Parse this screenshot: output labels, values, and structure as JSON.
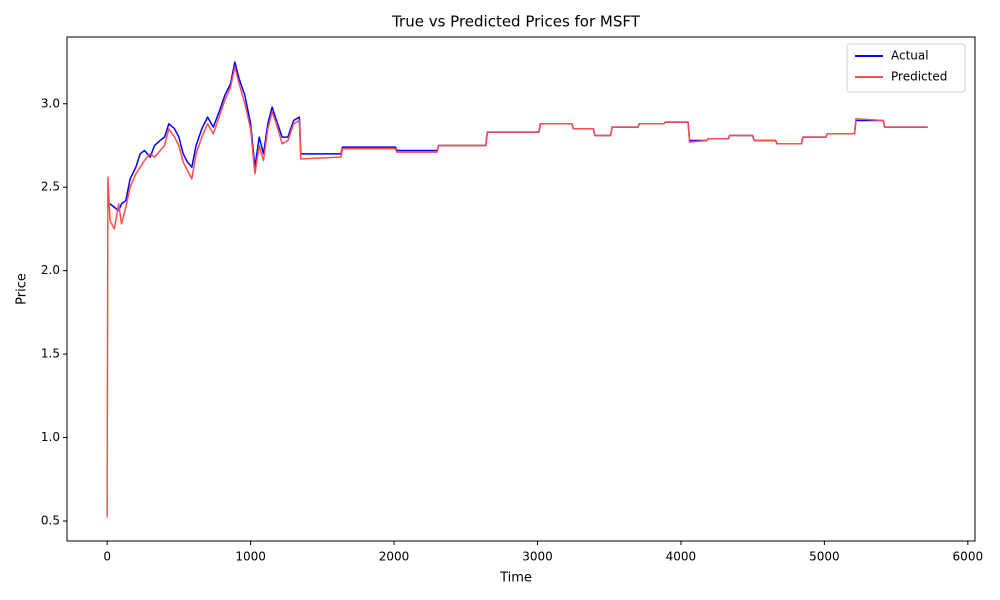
{
  "chart_data": {
    "type": "line",
    "title": "True vs Predicted Prices for MSFT",
    "x_label": "Time",
    "y_label": "Price",
    "x": [
      0,
      5,
      20,
      50,
      80,
      100,
      130,
      160,
      200,
      230,
      260,
      300,
      330,
      370,
      400,
      430,
      470,
      500,
      530,
      560,
      590,
      620,
      660,
      700,
      740,
      780,
      820,
      860,
      890,
      920,
      960,
      1000,
      1030,
      1060,
      1090,
      1120,
      1150,
      1180,
      1220,
      1260,
      1300,
      1340,
      1350,
      1630,
      1640,
      2010,
      2020,
      2300,
      2310,
      2640,
      2650,
      3010,
      3020,
      3240,
      3250,
      3390,
      3400,
      3510,
      3520,
      3700,
      3710,
      3880,
      3890,
      4050,
      4060,
      4180,
      4190,
      4330,
      4340,
      4500,
      4510,
      4660,
      4670,
      4840,
      4850,
      5010,
      5020,
      5210,
      5220,
      5410,
      5420,
      5590,
      5600,
      5720
    ],
    "series": [
      {
        "name": "Actual",
        "color": "#0000ff",
        "values": [
          2.38,
          2.38,
          2.4,
          2.38,
          2.36,
          2.4,
          2.42,
          2.55,
          2.62,
          2.7,
          2.72,
          2.68,
          2.75,
          2.78,
          2.8,
          2.88,
          2.85,
          2.8,
          2.7,
          2.65,
          2.62,
          2.75,
          2.85,
          2.92,
          2.86,
          2.95,
          3.05,
          3.12,
          3.25,
          3.15,
          3.05,
          2.88,
          2.62,
          2.8,
          2.7,
          2.88,
          2.98,
          2.9,
          2.8,
          2.8,
          2.9,
          2.92,
          2.7,
          2.7,
          2.74,
          2.74,
          2.72,
          2.72,
          2.75,
          2.75,
          2.83,
          2.83,
          2.88,
          2.88,
          2.85,
          2.85,
          2.81,
          2.81,
          2.86,
          2.86,
          2.88,
          2.88,
          2.89,
          2.89,
          2.78,
          2.78,
          2.79,
          2.79,
          2.81,
          2.81,
          2.78,
          2.78,
          2.76,
          2.76,
          2.8,
          2.8,
          2.82,
          2.82,
          2.9,
          2.9,
          2.86,
          2.86,
          2.86,
          2.86
        ]
      },
      {
        "name": "Predicted",
        "color": "#ff4d4d",
        "values": [
          0.52,
          2.56,
          2.3,
          2.25,
          2.4,
          2.28,
          2.38,
          2.5,
          2.58,
          2.62,
          2.66,
          2.7,
          2.68,
          2.72,
          2.75,
          2.85,
          2.8,
          2.75,
          2.65,
          2.6,
          2.55,
          2.7,
          2.8,
          2.88,
          2.82,
          2.92,
          3.02,
          3.1,
          3.22,
          3.12,
          3.0,
          2.85,
          2.58,
          2.75,
          2.66,
          2.85,
          2.95,
          2.88,
          2.76,
          2.78,
          2.88,
          2.9,
          2.67,
          2.68,
          2.73,
          2.73,
          2.71,
          2.71,
          2.75,
          2.75,
          2.83,
          2.83,
          2.88,
          2.88,
          2.85,
          2.85,
          2.81,
          2.81,
          2.86,
          2.86,
          2.88,
          2.88,
          2.89,
          2.89,
          2.77,
          2.78,
          2.79,
          2.79,
          2.81,
          2.81,
          2.78,
          2.78,
          2.76,
          2.76,
          2.8,
          2.8,
          2.82,
          2.82,
          2.91,
          2.9,
          2.86,
          2.86,
          2.86,
          2.86
        ]
      }
    ],
    "xlim": [
      -280,
      6050
    ],
    "ylim": [
      0.38,
      3.4
    ],
    "xticks": [
      0,
      1000,
      2000,
      3000,
      4000,
      5000,
      6000
    ],
    "yticks": [
      0.5,
      {
        "value": 1,
        "label": "1.0"
      },
      1.5,
      {
        "value": 2,
        "label": "2.0"
      },
      2.5,
      {
        "value": 3,
        "label": "3.0"
      }
    ],
    "grid": false,
    "legend": "upper right"
  }
}
